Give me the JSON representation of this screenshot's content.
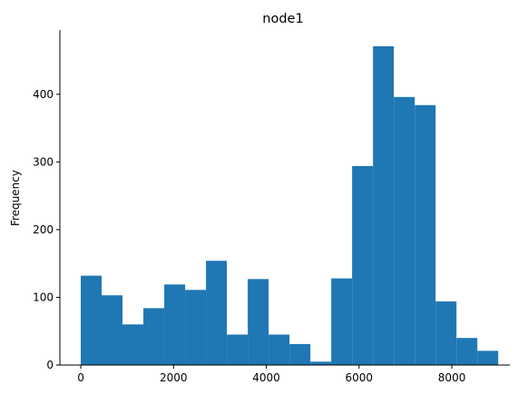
{
  "chart_data": {
    "type": "bar",
    "subtype": "histogram",
    "title": "node1",
    "xlabel": "",
    "ylabel": "Frequency",
    "bar_color": "#1f77b4",
    "bin_start": 0,
    "bin_width": 450,
    "values": [
      132,
      103,
      60,
      84,
      119,
      111,
      154,
      45,
      127,
      45,
      31,
      5,
      128,
      294,
      471,
      396,
      384,
      94,
      40,
      21
    ],
    "xlim": [
      -450,
      9250
    ],
    "ylim": [
      0,
      495
    ],
    "xticks": [
      0,
      2000,
      4000,
      6000,
      8000
    ],
    "yticks": [
      0,
      100,
      200,
      300,
      400
    ],
    "xtick_labels": [
      "0",
      "2000",
      "4000",
      "6000",
      "8000"
    ],
    "ytick_labels": [
      "0",
      "100",
      "200",
      "300",
      "400"
    ],
    "spines": "left-bottom",
    "grid": false
  }
}
